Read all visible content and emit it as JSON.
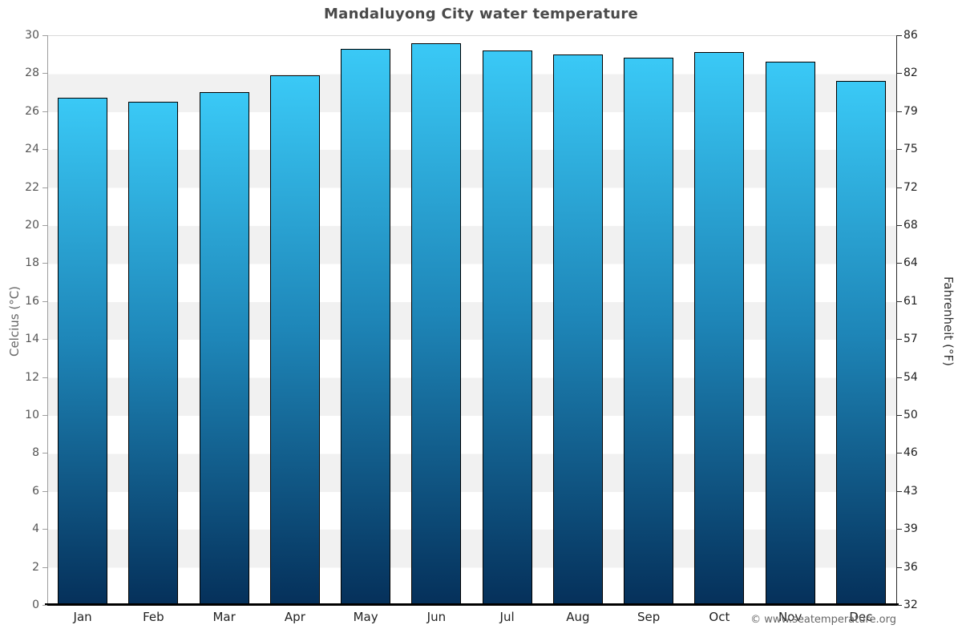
{
  "page": {
    "title": "Mandaluyong City water temperature",
    "credit": "© www.seatemperature.org"
  },
  "chart_data": {
    "type": "bar",
    "title": "Mandaluyong City water temperature",
    "categories": [
      "Jan",
      "Feb",
      "Mar",
      "Apr",
      "May",
      "Jun",
      "Jul",
      "Aug",
      "Sep",
      "Oct",
      "Nov",
      "Dec"
    ],
    "series": [
      {
        "name": "Water temperature",
        "unit": "°C",
        "values": [
          26.7,
          26.5,
          27.0,
          27.9,
          29.3,
          29.6,
          29.2,
          29.0,
          28.8,
          29.1,
          28.6,
          27.6
        ]
      }
    ],
    "ylabel_left": "Celcius (°C)",
    "ylabel_right": "Fahrenheit (°F)",
    "ylim_celsius": [
      0,
      30
    ],
    "yticks_celsius": [
      30,
      28,
      26,
      24,
      22,
      20,
      18,
      16,
      14,
      12,
      10,
      8,
      6,
      4,
      2,
      0
    ],
    "yticks_fahrenheit": [
      86,
      82,
      79,
      75,
      72,
      68,
      64,
      61,
      57,
      54,
      50,
      46,
      43,
      39,
      36,
      32
    ],
    "legend": "none",
    "grid": "alternating-horizontal-bands",
    "colors": {
      "bar_gradient_top": "#3ac9f6",
      "bar_gradient_mid": "#1e86b8",
      "bar_gradient_bottom": "#05305a",
      "band": "#f1f1f1",
      "title_text": "#4a4a4a",
      "axis_text": "#555555"
    }
  }
}
